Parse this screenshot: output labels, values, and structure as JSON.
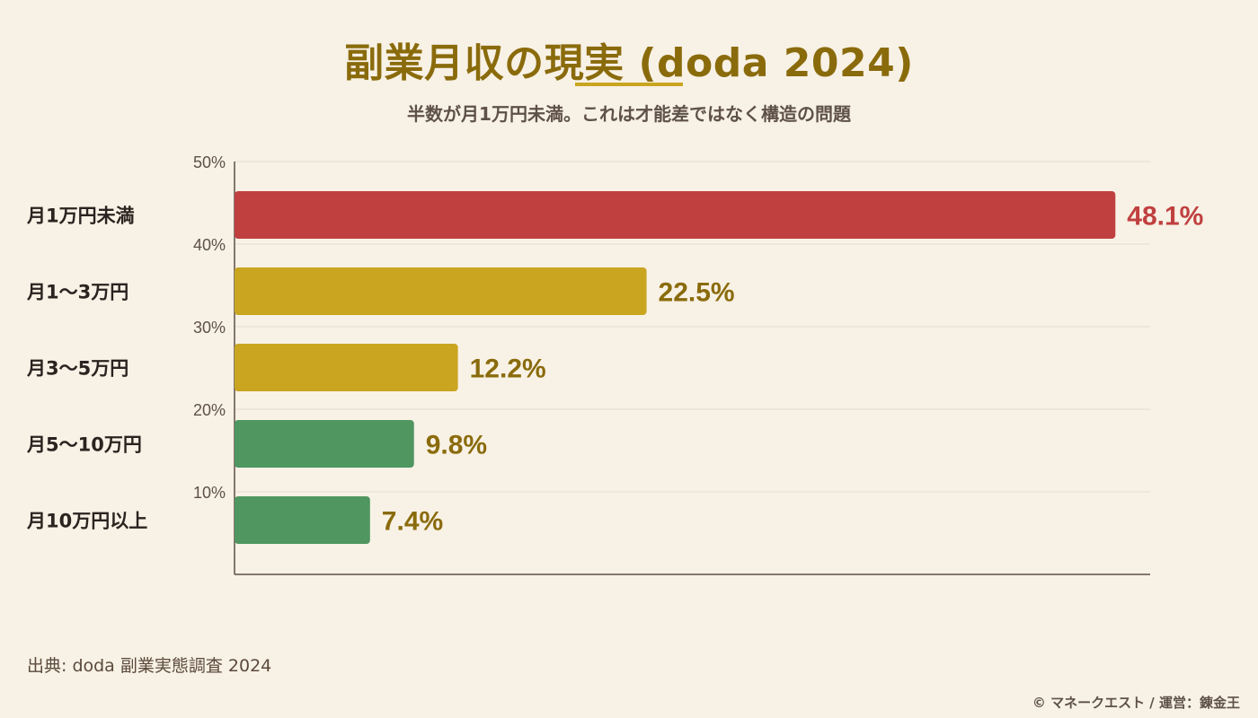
{
  "header": {
    "title": "副業月収の現実 (doda 2024)",
    "subtitle": "半数が月1万円未満。これは才能差ではなく構造の問題"
  },
  "footer": {
    "source": "出典: doda 副業実態調査 2024",
    "credit": "© マネークエスト / 運営：錬金王"
  },
  "colors": {
    "background": "#f8f1e5",
    "title": "#8a6b0c",
    "red": "#c04040",
    "gold": "#c9a520",
    "green": "#4f9660",
    "axis": "#5e5148",
    "grid": "#e4dccd"
  },
  "chart_data": {
    "type": "bar",
    "orientation": "horizontal",
    "categories": [
      "月1万円未満",
      "月1〜3万円",
      "月3〜5万円",
      "月5〜10万円",
      "月10万円以上"
    ],
    "values": [
      48.1,
      22.5,
      12.2,
      9.8,
      7.4
    ],
    "value_labels": [
      "48.1%",
      "22.5%",
      "12.2%",
      "9.8%",
      "7.4%"
    ],
    "bar_colors": [
      "#c04040",
      "#c9a520",
      "#c9a520",
      "#4f9660",
      "#4f9660"
    ],
    "label_colors": [
      "#c04040",
      "#8a6b0c",
      "#8a6b0c",
      "#8a6b0c",
      "#8a6b0c"
    ],
    "tick_labels": [
      "50%",
      "40%",
      "30%",
      "20%",
      "10%"
    ],
    "xlim": [
      0,
      50
    ],
    "grid": true,
    "legend": "none"
  }
}
